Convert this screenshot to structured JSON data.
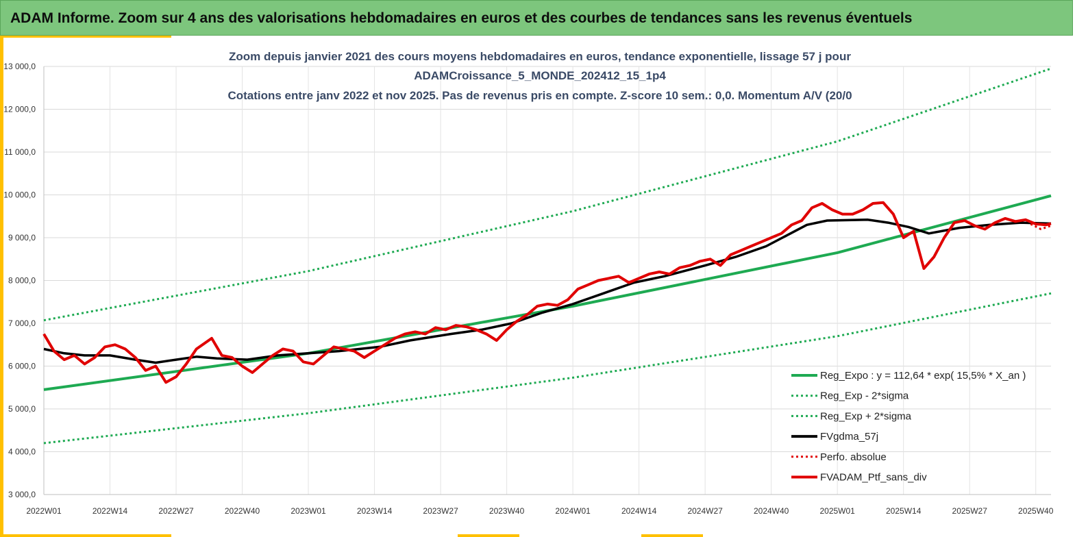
{
  "header": {
    "title": "ADAM Informe. Zoom sur 4 ans des valorisations hebdomadaires en euros et des courbes de tendances sans les revenus éventuels"
  },
  "chart_data": {
    "type": "line",
    "title_lines": [
      "Zoom depuis janvier 2021 des cours moyens hebdomadaires  en euros, tendance exponentielle, lissage 57 j pour",
      "ADAMCroissance_5_MONDE_202412_15_1p4",
      "Cotations  entre janv 2022 et nov 2025. Pas de revenus pris en compte. Z-score 10 sem.: 0,0. Momentum A/V (20/0"
    ],
    "ylim": [
      3000,
      13000
    ],
    "y_ticks": [
      3000,
      4000,
      5000,
      6000,
      7000,
      8000,
      9000,
      10000,
      11000,
      12000,
      13000
    ],
    "y_tick_labels": [
      "3 000,0",
      "4 000,0",
      "5 000,0",
      "6 000,0",
      "7 000,0",
      "8 000,0",
      "9 000,0",
      "10 000,0",
      "11 000,0",
      "12 000,0",
      "13 000,0"
    ],
    "x_week_range": [
      0,
      198
    ],
    "x_ticks": [
      0,
      13,
      26,
      39,
      52,
      65,
      78,
      91,
      104,
      117,
      130,
      143,
      156,
      169,
      182,
      195
    ],
    "x_tick_labels": [
      "2022W01",
      "2022W14",
      "2022W27",
      "2022W40",
      "2023W01",
      "2023W14",
      "2023W27",
      "2023W40",
      "2024W01",
      "2024W14",
      "2024W27",
      "2024W40",
      "2025W01",
      "2025W14",
      "2025W27",
      "2025W40"
    ],
    "grid": true,
    "legend_position": "bottom-right",
    "series": [
      {
        "name": "Reg_Expo : y = 112,64 * exp( 15,5% *  X_an )",
        "color": "#1eaa52",
        "style": "solid",
        "points": [
          [
            0,
            5450
          ],
          [
            52,
            6300
          ],
          [
            104,
            7400
          ],
          [
            156,
            8650
          ],
          [
            198,
            9980
          ]
        ]
      },
      {
        "name": "Reg_Exp - 2*sigma",
        "color": "#1eaa52",
        "style": "dotted",
        "points": [
          [
            0,
            4200
          ],
          [
            52,
            4900
          ],
          [
            104,
            5730
          ],
          [
            156,
            6700
          ],
          [
            198,
            7700
          ]
        ]
      },
      {
        "name": "Reg_Exp + 2*sigma",
        "color": "#1eaa52",
        "style": "dotted",
        "points": [
          [
            0,
            7070
          ],
          [
            52,
            8220
          ],
          [
            104,
            9620
          ],
          [
            156,
            11250
          ],
          [
            198,
            12950
          ]
        ]
      },
      {
        "name": "FVgdma_57j",
        "color": "#000000",
        "style": "solid",
        "points": [
          [
            0,
            6400
          ],
          [
            4,
            6300
          ],
          [
            8,
            6250
          ],
          [
            13,
            6250
          ],
          [
            18,
            6150
          ],
          [
            22,
            6080
          ],
          [
            26,
            6150
          ],
          [
            30,
            6220
          ],
          [
            34,
            6180
          ],
          [
            40,
            6150
          ],
          [
            46,
            6250
          ],
          [
            52,
            6300
          ],
          [
            58,
            6350
          ],
          [
            66,
            6450
          ],
          [
            72,
            6600
          ],
          [
            80,
            6750
          ],
          [
            86,
            6850
          ],
          [
            92,
            7000
          ],
          [
            98,
            7250
          ],
          [
            104,
            7450
          ],
          [
            110,
            7700
          ],
          [
            116,
            7950
          ],
          [
            122,
            8100
          ],
          [
            130,
            8350
          ],
          [
            136,
            8550
          ],
          [
            142,
            8800
          ],
          [
            146,
            9050
          ],
          [
            150,
            9300
          ],
          [
            154,
            9400
          ],
          [
            162,
            9420
          ],
          [
            166,
            9350
          ],
          [
            170,
            9250
          ],
          [
            174,
            9100
          ],
          [
            180,
            9230
          ],
          [
            186,
            9300
          ],
          [
            192,
            9350
          ],
          [
            198,
            9330
          ]
        ]
      },
      {
        "name": "Perfo. absolue",
        "color": "#e00000",
        "style": "dotted",
        "points": [
          [
            194,
            9320
          ],
          [
            196,
            9200
          ],
          [
            198,
            9280
          ]
        ]
      },
      {
        "name": "FVADAM_Ptf_sans_div",
        "color": "#e00000",
        "style": "solid",
        "points": [
          [
            0,
            6750
          ],
          [
            2,
            6350
          ],
          [
            4,
            6150
          ],
          [
            6,
            6250
          ],
          [
            8,
            6050
          ],
          [
            10,
            6200
          ],
          [
            12,
            6450
          ],
          [
            14,
            6500
          ],
          [
            16,
            6400
          ],
          [
            18,
            6200
          ],
          [
            20,
            5900
          ],
          [
            22,
            6000
          ],
          [
            24,
            5620
          ],
          [
            26,
            5750
          ],
          [
            28,
            6050
          ],
          [
            30,
            6400
          ],
          [
            33,
            6650
          ],
          [
            35,
            6250
          ],
          [
            37,
            6200
          ],
          [
            39,
            6000
          ],
          [
            41,
            5850
          ],
          [
            43,
            6050
          ],
          [
            45,
            6250
          ],
          [
            47,
            6400
          ],
          [
            49,
            6350
          ],
          [
            51,
            6100
          ],
          [
            53,
            6050
          ],
          [
            55,
            6250
          ],
          [
            57,
            6450
          ],
          [
            59,
            6400
          ],
          [
            61,
            6350
          ],
          [
            63,
            6200
          ],
          [
            65,
            6350
          ],
          [
            67,
            6500
          ],
          [
            69,
            6650
          ],
          [
            71,
            6750
          ],
          [
            73,
            6800
          ],
          [
            75,
            6750
          ],
          [
            77,
            6900
          ],
          [
            79,
            6850
          ],
          [
            81,
            6950
          ],
          [
            83,
            6920
          ],
          [
            85,
            6850
          ],
          [
            87,
            6750
          ],
          [
            89,
            6600
          ],
          [
            91,
            6850
          ],
          [
            93,
            7050
          ],
          [
            95,
            7200
          ],
          [
            97,
            7400
          ],
          [
            99,
            7450
          ],
          [
            101,
            7420
          ],
          [
            103,
            7550
          ],
          [
            105,
            7800
          ],
          [
            107,
            7900
          ],
          [
            109,
            8000
          ],
          [
            111,
            8050
          ],
          [
            113,
            8100
          ],
          [
            115,
            7950
          ],
          [
            117,
            8050
          ],
          [
            119,
            8150
          ],
          [
            121,
            8200
          ],
          [
            123,
            8150
          ],
          [
            125,
            8300
          ],
          [
            127,
            8350
          ],
          [
            129,
            8450
          ],
          [
            131,
            8500
          ],
          [
            133,
            8350
          ],
          [
            135,
            8600
          ],
          [
            137,
            8700
          ],
          [
            139,
            8800
          ],
          [
            141,
            8900
          ],
          [
            143,
            9000
          ],
          [
            145,
            9100
          ],
          [
            147,
            9300
          ],
          [
            149,
            9400
          ],
          [
            151,
            9700
          ],
          [
            153,
            9800
          ],
          [
            155,
            9650
          ],
          [
            157,
            9550
          ],
          [
            159,
            9550
          ],
          [
            161,
            9650
          ],
          [
            163,
            9800
          ],
          [
            165,
            9820
          ],
          [
            167,
            9550
          ],
          [
            169,
            9000
          ],
          [
            171,
            9150
          ],
          [
            173,
            8280
          ],
          [
            175,
            8550
          ],
          [
            177,
            9000
          ],
          [
            179,
            9350
          ],
          [
            181,
            9400
          ],
          [
            183,
            9280
          ],
          [
            185,
            9200
          ],
          [
            187,
            9350
          ],
          [
            189,
            9450
          ],
          [
            191,
            9380
          ],
          [
            193,
            9420
          ],
          [
            195,
            9320
          ],
          [
            197,
            9300
          ],
          [
            198,
            9330
          ]
        ]
      }
    ]
  }
}
